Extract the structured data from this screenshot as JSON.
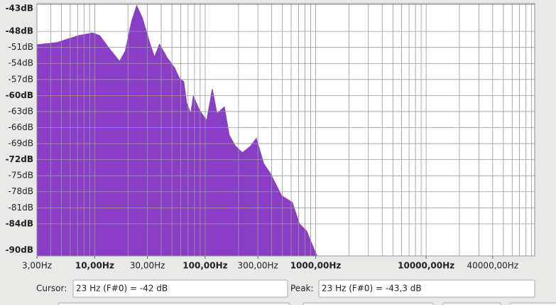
{
  "chart_data": {
    "type": "area",
    "color": "#8a3ec6",
    "log_x": true,
    "grid": true,
    "xlim": [
      3,
      96000
    ],
    "ylim": [
      -90,
      -42.8
    ],
    "x": [
      3.0,
      4.55,
      7.1,
      9.6,
      11.1,
      13.9,
      16.8,
      18.9,
      21.6,
      24,
      27,
      31.4,
      34.8,
      38.6,
      45.5,
      52.8,
      58.5,
      64,
      68,
      74,
      78,
      88.7,
      103,
      116,
      128,
      149,
      165,
      187,
      217,
      259,
      290,
      338,
      392,
      490,
      615,
      713,
      827,
      960,
      1030
    ],
    "values": [
      -50.5,
      -50.1,
      -48.8,
      -48.3,
      -48.8,
      -51.5,
      -53.6,
      -51.7,
      -46.1,
      -43.2,
      -45.5,
      -50.1,
      -52.8,
      -50.4,
      -53,
      -54.8,
      -56.8,
      -57.4,
      -61.4,
      -63.4,
      -60.1,
      -62.7,
      -64.7,
      -58.8,
      -63.4,
      -62.1,
      -67.4,
      -69.4,
      -70.7,
      -69.4,
      -68,
      -72.7,
      -74.7,
      -78.7,
      -80,
      -84,
      -85.3,
      -88.6,
      -90
    ],
    "xticks": [
      {
        "value": 3,
        "label": "3,00Hz"
      },
      {
        "value": 10,
        "label": "10,00Hz",
        "bold": true
      },
      {
        "value": 30,
        "label": "30,00Hz"
      },
      {
        "value": 100,
        "label": "100,00Hz",
        "bold": true
      },
      {
        "value": 300,
        "label": "300,00Hz"
      },
      {
        "value": 1000,
        "label": "1000,00Hz",
        "bold": true
      },
      {
        "value": 10000,
        "label": "10000,00Hz",
        "bold": true
      },
      {
        "value": 40000,
        "label": "40000,00Hz"
      }
    ],
    "xgrid": [
      3,
      4,
      5,
      6,
      7,
      8,
      9,
      10,
      20,
      30,
      40,
      50,
      60,
      70,
      80,
      90,
      100,
      200,
      300,
      400,
      500,
      600,
      700,
      800,
      900,
      1000,
      2000,
      3000,
      4000,
      5000,
      6000,
      7000,
      8000,
      9000,
      10000,
      20000,
      30000,
      40000,
      50000,
      60000,
      70000,
      80000,
      90000
    ],
    "yticks": [
      {
        "value": -43,
        "label": "-43dB",
        "bold": true
      },
      {
        "value": -48,
        "label": "-48dB",
        "bold": true
      },
      {
        "value": -51,
        "label": "-51dB"
      },
      {
        "value": -54,
        "label": "-54dB"
      },
      {
        "value": -57,
        "label": "-57dB"
      },
      {
        "value": -60,
        "label": "-60dB",
        "bold": true
      },
      {
        "value": -63,
        "label": "-63dB"
      },
      {
        "value": -66,
        "label": "-66dB"
      },
      {
        "value": -69,
        "label": "-69dB"
      },
      {
        "value": -72,
        "label": "-72dB",
        "bold": true
      },
      {
        "value": -75,
        "label": "-75dB"
      },
      {
        "value": -78,
        "label": "-78dB"
      },
      {
        "value": -81,
        "label": "-81dB"
      },
      {
        "value": -84,
        "label": "-84dB",
        "bold": true
      },
      {
        "value": -90,
        "label": "-90dB",
        "bold": true
      }
    ]
  },
  "controls": {
    "cursor_label": "Cursor:",
    "cursor_value": "23 Hz (F#0) = -42 dB",
    "peak_label": "Peak:",
    "peak_value": "23 Hz (F#0) = -43,3 dB"
  }
}
